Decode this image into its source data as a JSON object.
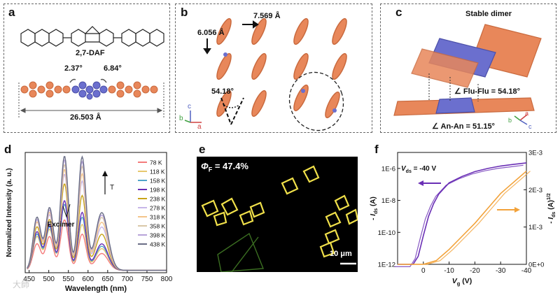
{
  "panels": {
    "a": {
      "label": "a",
      "molecule_name": "2,7-DAF",
      "angle_left": "2.37°",
      "angle_right": "6.84°",
      "length": "26.503 Å"
    },
    "b": {
      "label": "b",
      "dist_horizontal": "7.569 Å",
      "dist_vertical": "6.056 Å",
      "angle": "54.18°",
      "axis_c": "c",
      "axis_b": "b",
      "axis_a": "a"
    },
    "c": {
      "label": "c",
      "title": "Stable dimer",
      "angle_flu": "∠ Flu-Flu = 54.18°",
      "angle_an": "∠ An-An = 51.15°",
      "axis_b": "b",
      "axis_a": "a",
      "axis_c": "c"
    },
    "d": {
      "label": "d"
    },
    "e": {
      "label": "e",
      "quantum_yield": "Φ",
      "quantum_yield_sub": "F",
      "quantum_yield_value": " = 47.4%",
      "scale_bar": "10 μm"
    },
    "f": {
      "label": "f",
      "vds": "V",
      "vds_sub": "ds",
      "vds_value": " = -40 V"
    }
  },
  "colors": {
    "orange": "#e8875a",
    "blue": "#6b6fce",
    "purple": "#6a2fb5",
    "amber": "#f2a23a"
  },
  "watermark": "大師",
  "chart_data": [
    {
      "type": "line",
      "title": "",
      "xlabel": "Wavelength (nm)",
      "ylabel": "Normalized Intensity (a. u.)",
      "xlim": [
        440,
        800
      ],
      "x_ticks": [
        "450",
        "500",
        "550",
        "600",
        "650",
        "700",
        "750",
        "800"
      ],
      "annotation_excimer": "Excimer",
      "annotation_T": "T",
      "series": [
        {
          "name": "78 K",
          "color": "#f47b7b",
          "peaks": [
            [
              470,
              0.22
            ],
            [
              502,
              0.28
            ],
            [
              540,
              0.42
            ],
            [
              585,
              0.3
            ],
            [
              635,
              0.14
            ]
          ]
        },
        {
          "name": "118 K",
          "color": "#e7c86e",
          "peaks": [
            [
              470,
              0.28
            ],
            [
              502,
              0.34
            ],
            [
              540,
              0.55
            ],
            [
              585,
              0.38
            ],
            [
              635,
              0.18
            ]
          ]
        },
        {
          "name": "158 K",
          "color": "#4fa4c9",
          "peaks": [
            [
              470,
              0.3
            ],
            [
              502,
              0.36
            ],
            [
              540,
              0.55
            ],
            [
              585,
              0.44
            ],
            [
              635,
              0.2
            ]
          ]
        },
        {
          "name": "198 K",
          "color": "#6a2fb5",
          "peaks": [
            [
              470,
              0.32
            ],
            [
              502,
              0.38
            ],
            [
              540,
              0.58
            ],
            [
              585,
              0.48
            ],
            [
              635,
              0.22
            ]
          ]
        },
        {
          "name": "238 K",
          "color": "#c8a418",
          "peaks": [
            [
              470,
              0.36
            ],
            [
              502,
              0.42
            ],
            [
              540,
              0.72
            ],
            [
              585,
              0.62
            ],
            [
              635,
              0.3
            ]
          ]
        },
        {
          "name": "278 K",
          "color": "#c7b6e8",
          "peaks": [
            [
              470,
              0.4
            ],
            [
              502,
              0.46
            ],
            [
              540,
              0.8
            ],
            [
              585,
              0.74
            ],
            [
              635,
              0.36
            ]
          ]
        },
        {
          "name": "318 K",
          "color": "#f4c48a",
          "peaks": [
            [
              470,
              0.4
            ],
            [
              502,
              0.48
            ],
            [
              540,
              0.84
            ],
            [
              585,
              0.8
            ],
            [
              635,
              0.4
            ]
          ]
        },
        {
          "name": "358 K",
          "color": "#d9c7a8",
          "peaks": [
            [
              470,
              0.42
            ],
            [
              502,
              0.5
            ],
            [
              540,
              0.88
            ],
            [
              585,
              0.86
            ],
            [
              635,
              0.44
            ]
          ]
        },
        {
          "name": "398 K",
          "color": "#b8a3d9",
          "peaks": [
            [
              470,
              0.42
            ],
            [
              502,
              0.5
            ],
            [
              540,
              0.92
            ],
            [
              585,
              0.9
            ],
            [
              635,
              0.46
            ]
          ]
        },
        {
          "name": "438 K",
          "color": "#6a6e86",
          "peaks": [
            [
              470,
              0.44
            ],
            [
              502,
              0.52
            ],
            [
              540,
              0.95
            ],
            [
              585,
              0.94
            ],
            [
              635,
              0.48
            ]
          ]
        }
      ]
    },
    {
      "type": "line",
      "title": "",
      "xlabel": "V",
      "xlabel_sub": "g",
      "xlabel_unit": " (V)",
      "ylabel_left": "- I",
      "ylabel_left_sub": "ds",
      "ylabel_left_unit": " (A)",
      "ylabel_right": "- I",
      "ylabel_right_sub": "ds",
      "ylabel_right_unit": " (A)",
      "ylabel_right_sup": "1/2",
      "xlim": [
        10,
        -40
      ],
      "x_ticks": [
        "0",
        "-10",
        "-20",
        "-30",
        "-40"
      ],
      "y_left_ticks": [
        "1E-12",
        "1E-10",
        "1E-8",
        "1E-6"
      ],
      "y_right_ticks": [
        "0E+0",
        "1E-3",
        "2E-3",
        "3E-3"
      ],
      "series": [
        {
          "name": "log",
          "color": "#6a2fb5",
          "x": [
            10,
            4,
            2,
            0,
            -2,
            -4,
            -6,
            -10,
            -15,
            -20,
            -25,
            -30,
            -35,
            -40
          ],
          "y_log10": [
            -12,
            -12,
            -11.5,
            -10.2,
            -9.0,
            -8.2,
            -7.6,
            -6.9,
            -6.5,
            -6.2,
            -6.0,
            -5.85,
            -5.75,
            -5.65
          ]
        },
        {
          "name": "sqrt",
          "color": "#f2a23a",
          "x": [
            10,
            0,
            -5,
            -10,
            -15,
            -20,
            -25,
            -30,
            -35,
            -40
          ],
          "y": [
            0,
            0,
            0.0001,
            0.0004,
            0.00075,
            0.0011,
            0.0015,
            0.0019,
            0.0022,
            0.0025
          ]
        }
      ]
    }
  ]
}
